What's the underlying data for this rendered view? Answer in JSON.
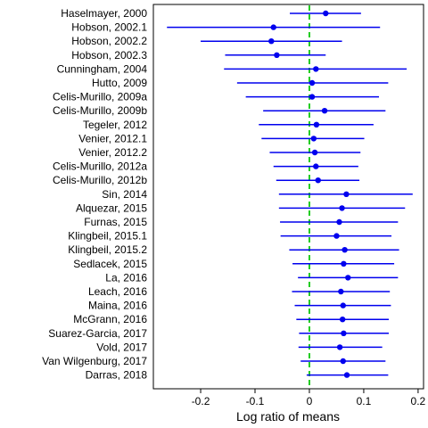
{
  "chart_data": {
    "type": "forest",
    "xlabel": "Log ratio of means",
    "xlim": [
      -0.287,
      0.21
    ],
    "xticks": [
      -0.2,
      -0.1,
      0.0,
      0.1,
      0.2
    ],
    "xtick_labels": [
      "-0.2",
      "-0.1",
      "0",
      "0.1",
      "0.2"
    ],
    "reference_line": {
      "x": 0,
      "style": "dashed",
      "color": "#22cc22"
    },
    "colors": {
      "interval": "#0000ee",
      "point": "#0000ee",
      "frame": "#000000"
    },
    "grid": false,
    "studies": [
      {
        "label": "Haselmayer, 2000",
        "estimate": 0.03,
        "lower": -0.036,
        "upper": 0.095
      },
      {
        "label": "Hobson, 2002.1",
        "estimate": -0.066,
        "lower": -0.262,
        "upper": 0.13
      },
      {
        "label": "Hobson, 2002.2",
        "estimate": -0.07,
        "lower": -0.2,
        "upper": 0.06
      },
      {
        "label": "Hobson, 2002.3",
        "estimate": -0.06,
        "lower": -0.155,
        "upper": 0.03
      },
      {
        "label": "Cunningham, 2004",
        "estimate": 0.012,
        "lower": -0.157,
        "upper": 0.179
      },
      {
        "label": "Hutto, 2009",
        "estimate": 0.005,
        "lower": -0.133,
        "upper": 0.145
      },
      {
        "label": "Celis-Murillo, 2009a",
        "estimate": 0.005,
        "lower": -0.117,
        "upper": 0.128
      },
      {
        "label": "Celis-Murillo, 2009b",
        "estimate": 0.028,
        "lower": -0.085,
        "upper": 0.14
      },
      {
        "label": "Tegeler, 2012",
        "estimate": 0.013,
        "lower": -0.093,
        "upper": 0.118
      },
      {
        "label": "Venier, 2012.1",
        "estimate": 0.008,
        "lower": -0.088,
        "upper": 0.101
      },
      {
        "label": "Venier, 2012.2",
        "estimate": 0.01,
        "lower": -0.073,
        "upper": 0.094
      },
      {
        "label": "Celis-Murillo, 2012a",
        "estimate": 0.012,
        "lower": -0.066,
        "upper": 0.09
      },
      {
        "label": "Celis-Murillo, 2012b",
        "estimate": 0.016,
        "lower": -0.061,
        "upper": 0.092
      },
      {
        "label": "Sin, 2014",
        "estimate": 0.068,
        "lower": -0.056,
        "upper": 0.19
      },
      {
        "label": "Alquezar, 2015",
        "estimate": 0.06,
        "lower": -0.056,
        "upper": 0.176
      },
      {
        "label": "Furnas, 2015",
        "estimate": 0.055,
        "lower": -0.054,
        "upper": 0.163
      },
      {
        "label": "Klingbeil, 2015.1",
        "estimate": 0.05,
        "lower": -0.053,
        "upper": 0.151
      },
      {
        "label": "Klingbeil, 2015.2",
        "estimate": 0.065,
        "lower": -0.037,
        "upper": 0.165
      },
      {
        "label": "Sedlacek, 2015",
        "estimate": 0.063,
        "lower": -0.031,
        "upper": 0.156
      },
      {
        "label": "La, 2016",
        "estimate": 0.071,
        "lower": -0.021,
        "upper": 0.163
      },
      {
        "label": "Leach, 2016",
        "estimate": 0.058,
        "lower": -0.032,
        "upper": 0.148
      },
      {
        "label": "Maina, 2016",
        "estimate": 0.062,
        "lower": -0.027,
        "upper": 0.15
      },
      {
        "label": "McGrann, 2016",
        "estimate": 0.061,
        "lower": -0.024,
        "upper": 0.146
      },
      {
        "label": "Suarez-Garcia, 2017",
        "estimate": 0.063,
        "lower": -0.019,
        "upper": 0.146
      },
      {
        "label": "Vold, 2017",
        "estimate": 0.056,
        "lower": -0.02,
        "upper": 0.134
      },
      {
        "label": "Van Wilgenburg, 2017",
        "estimate": 0.062,
        "lower": -0.016,
        "upper": 0.14
      },
      {
        "label": "Darras, 2018",
        "estimate": 0.069,
        "lower": -0.005,
        "upper": 0.145
      }
    ]
  }
}
